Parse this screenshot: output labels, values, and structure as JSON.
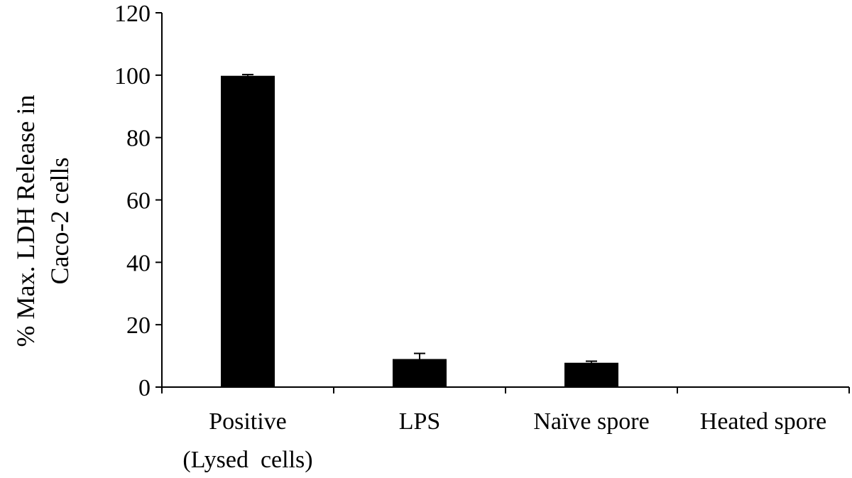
{
  "chart_data": {
    "type": "bar",
    "title": "",
    "ylabel_lines": [
      "% Max. LDH Release in",
      "Caco-2 cells"
    ],
    "xlabel": "",
    "ylim": [
      0,
      120
    ],
    "yticks": [
      0,
      20,
      40,
      60,
      80,
      100,
      120
    ],
    "grid": false,
    "legend": "none",
    "bar_color": "#000000",
    "categories": [
      {
        "lines": [
          "Positive",
          "(Lysed  cells)"
        ]
      },
      {
        "lines": [
          "LPS"
        ]
      },
      {
        "lines": [
          "Naïve spore"
        ]
      },
      {
        "lines": [
          "Heated spore"
        ]
      }
    ],
    "values": [
      99.8,
      9.0,
      7.8,
      0
    ],
    "errors": [
      0.4,
      1.8,
      0.5,
      0
    ]
  }
}
